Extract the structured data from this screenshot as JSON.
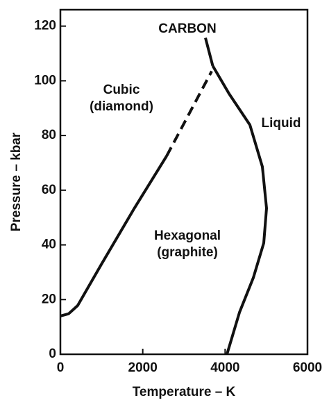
{
  "chart_data": {
    "type": "line",
    "title": "CARBON",
    "xlabel": "Temperature – K",
    "ylabel": "Pressure – kbar",
    "annotations": [
      [
        "Cubic",
        "(diamond)"
      ],
      [
        "Liquid"
      ],
      [
        "Hexagonal",
        "(graphite)"
      ]
    ],
    "xlim": [
      0,
      6000
    ],
    "ylim": [
      0,
      126
    ],
    "xticks": [
      0,
      2000,
      4000,
      6000
    ],
    "yticks": [
      0,
      20,
      40,
      60,
      80,
      100,
      120
    ],
    "color": "#111",
    "series": [
      {
        "x": [
          0,
          200,
          420,
          1000,
          1800,
          2580
        ],
        "values": [
          14,
          14.8,
          17.8,
          33,
          53.5,
          72.5
        ],
        "dashed": false
      },
      {
        "x": [
          2580,
          3674
        ],
        "values": [
          72.5,
          103.5
        ],
        "dashed": true
      },
      {
        "x": [
          3700,
          4096,
          4601,
          4904,
          5006,
          4938,
          4685,
          4348,
          4045
        ],
        "values": [
          105.5,
          95.3,
          83.9,
          68.6,
          53.4,
          40.7,
          28,
          15.3,
          0
        ],
        "dashed": false
      },
      {
        "x": [
          3700,
          3522
        ],
        "values": [
          105.5,
          115.7
        ],
        "dashed": false
      }
    ]
  }
}
